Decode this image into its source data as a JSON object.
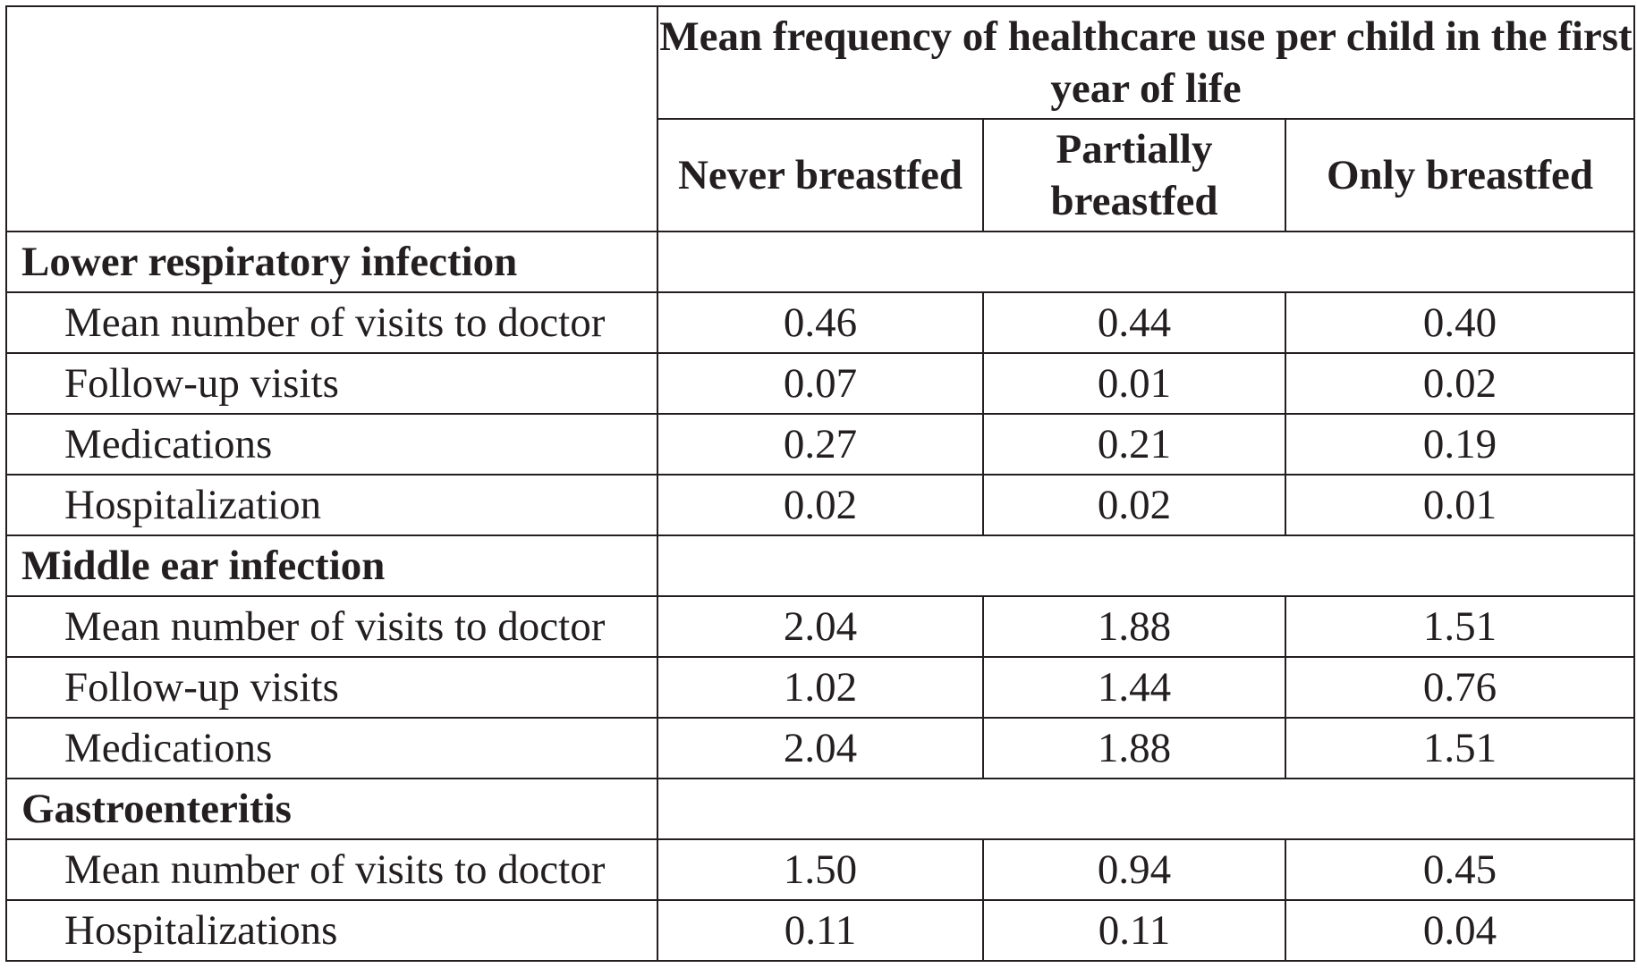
{
  "chart_data": {
    "type": "table",
    "header": {
      "span_title": "Mean frequency of healthcare use per child in the first year of life",
      "columns": [
        "Never breastfed",
        "Partially breastfed",
        "Only breastfed"
      ]
    },
    "groups": [
      {
        "label": "Lower respiratory infection",
        "rows": [
          {
            "label": "Mean number of visits to doctor",
            "values": [
              "0.46",
              "0.44",
              "0.40"
            ]
          },
          {
            "label": "Follow-up visits",
            "values": [
              "0.07",
              "0.01",
              "0.02"
            ]
          },
          {
            "label": "Medications",
            "values": [
              "0.27",
              "0.21",
              "0.19"
            ]
          },
          {
            "label": "Hospitalization",
            "values": [
              "0.02",
              "0.02",
              "0.01"
            ]
          }
        ]
      },
      {
        "label": "Middle ear infection",
        "rows": [
          {
            "label": "Mean number of visits to doctor",
            "values": [
              "2.04",
              "1.88",
              "1.51"
            ]
          },
          {
            "label": "Follow-up visits",
            "values": [
              "1.02",
              "1.44",
              "0.76"
            ]
          },
          {
            "label": "Medications",
            "values": [
              "2.04",
              "1.88",
              "1.51"
            ]
          }
        ]
      },
      {
        "label": "Gastroenteritis",
        "rows": [
          {
            "label": "Mean number of visits to doctor",
            "values": [
              "1.50",
              "0.94",
              "0.45"
            ]
          },
          {
            "label": "Hospitalizations",
            "values": [
              "0.11",
              "0.11",
              "0.04"
            ]
          }
        ]
      }
    ]
  }
}
